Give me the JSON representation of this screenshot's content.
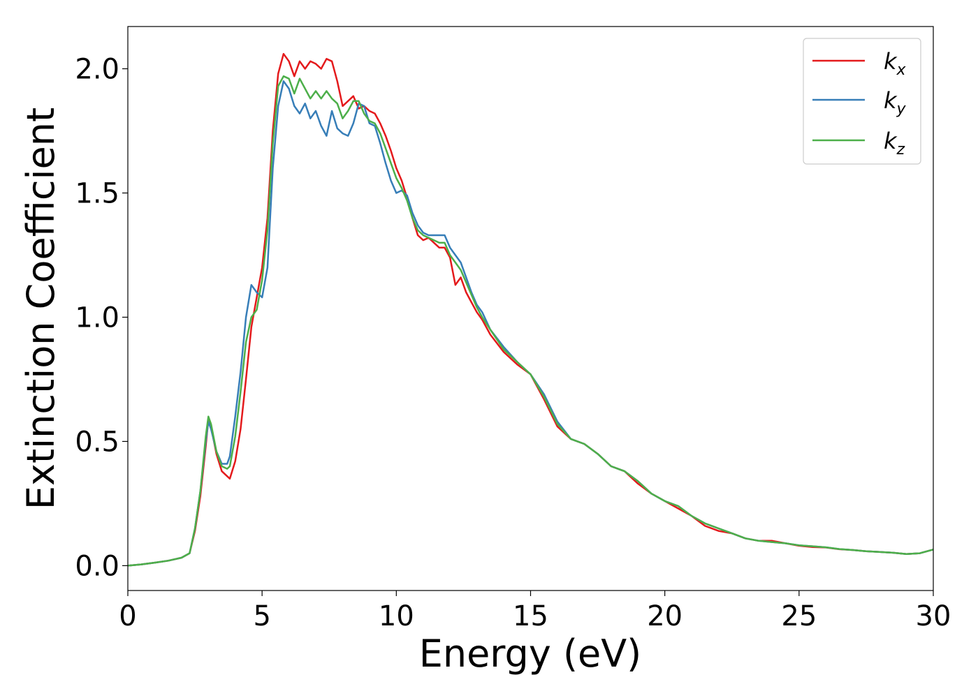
{
  "chart_data": {
    "type": "line",
    "xlabel": "Energy (eV)",
    "ylabel": "Extinction Coefficient",
    "xlim": [
      0,
      30
    ],
    "ylim": [
      -0.1,
      2.17
    ],
    "xticks": [
      0,
      5,
      10,
      15,
      20,
      25,
      30
    ],
    "xtick_labels": [
      "0",
      "5",
      "10",
      "15",
      "20",
      "25",
      "30"
    ],
    "yticks": [
      0.0,
      0.5,
      1.0,
      1.5,
      2.0
    ],
    "ytick_labels": [
      "0.0",
      "0.5",
      "1.0",
      "1.5",
      "2.0"
    ],
    "grid": false,
    "legend_position": "top-right",
    "series": [
      {
        "name": "k_x",
        "label_main": "k",
        "label_sub": "x",
        "color": "#e41a1c",
        "x": [
          0,
          0.5,
          1,
          1.5,
          2,
          2.3,
          2.5,
          2.7,
          2.9,
          3.0,
          3.1,
          3.3,
          3.5,
          3.7,
          3.8,
          4.0,
          4.2,
          4.4,
          4.6,
          4.8,
          5.0,
          5.2,
          5.4,
          5.6,
          5.8,
          6.0,
          6.2,
          6.4,
          6.6,
          6.8,
          7.0,
          7.2,
          7.4,
          7.6,
          7.8,
          8.0,
          8.2,
          8.4,
          8.6,
          8.8,
          9.0,
          9.2,
          9.4,
          9.6,
          9.8,
          10.0,
          10.2,
          10.4,
          10.6,
          10.8,
          11.0,
          11.2,
          11.4,
          11.6,
          11.8,
          12.0,
          12.2,
          12.4,
          12.6,
          12.8,
          13.0,
          13.2,
          13.5,
          14.0,
          14.5,
          15.0,
          15.5,
          16.0,
          16.5,
          17.0,
          17.5,
          18.0,
          18.5,
          19.0,
          19.5,
          20.0,
          20.5,
          21.0,
          21.5,
          22.0,
          22.5,
          23.0,
          23.5,
          24.0,
          24.5,
          25.0,
          25.5,
          26.0,
          26.5,
          27.0,
          27.5,
          28.0,
          28.5,
          29.0,
          29.5,
          30.0
        ],
        "y": [
          0.0,
          0.005,
          0.012,
          0.02,
          0.032,
          0.05,
          0.14,
          0.28,
          0.48,
          0.59,
          0.56,
          0.45,
          0.38,
          0.36,
          0.35,
          0.42,
          0.55,
          0.75,
          0.96,
          1.08,
          1.2,
          1.4,
          1.75,
          1.98,
          2.06,
          2.03,
          1.97,
          2.03,
          2.0,
          2.03,
          2.02,
          2.0,
          2.04,
          2.03,
          1.95,
          1.85,
          1.87,
          1.89,
          1.84,
          1.85,
          1.83,
          1.82,
          1.78,
          1.73,
          1.67,
          1.6,
          1.55,
          1.48,
          1.4,
          1.33,
          1.31,
          1.32,
          1.3,
          1.28,
          1.28,
          1.24,
          1.13,
          1.16,
          1.1,
          1.06,
          1.02,
          0.99,
          0.93,
          0.86,
          0.81,
          0.77,
          0.67,
          0.56,
          0.51,
          0.49,
          0.45,
          0.4,
          0.38,
          0.33,
          0.29,
          0.26,
          0.23,
          0.2,
          0.16,
          0.14,
          0.13,
          0.11,
          0.1,
          0.1,
          0.09,
          0.08,
          0.075,
          0.073,
          0.066,
          0.063,
          0.058,
          0.055,
          0.052,
          0.047,
          0.05,
          0.065
        ]
      },
      {
        "name": "k_y",
        "label_main": "k",
        "label_sub": "y",
        "color": "#377eb8",
        "x": [
          0,
          0.5,
          1,
          1.5,
          2,
          2.3,
          2.5,
          2.7,
          2.9,
          3.0,
          3.1,
          3.3,
          3.5,
          3.7,
          3.8,
          4.0,
          4.2,
          4.4,
          4.6,
          4.8,
          5.0,
          5.2,
          5.4,
          5.6,
          5.8,
          6.0,
          6.2,
          6.4,
          6.6,
          6.8,
          7.0,
          7.2,
          7.4,
          7.6,
          7.8,
          8.0,
          8.2,
          8.4,
          8.6,
          8.8,
          9.0,
          9.2,
          9.4,
          9.6,
          9.8,
          10.0,
          10.2,
          10.4,
          10.6,
          10.8,
          11.0,
          11.2,
          11.4,
          11.6,
          11.8,
          12.0,
          12.2,
          12.4,
          12.6,
          12.8,
          13.0,
          13.2,
          13.5,
          14.0,
          14.5,
          15.0,
          15.5,
          16.0,
          16.5,
          17.0,
          17.5,
          18.0,
          18.5,
          19.0,
          19.5,
          20.0,
          20.5,
          21.0,
          21.5,
          22.0,
          22.5,
          23.0,
          23.5,
          24.0,
          24.5,
          25.0,
          25.5,
          26.0,
          26.5,
          27.0,
          27.5,
          28.0,
          28.5,
          29.0,
          29.5,
          30.0
        ],
        "y": [
          0.0,
          0.005,
          0.012,
          0.02,
          0.032,
          0.05,
          0.15,
          0.3,
          0.5,
          0.58,
          0.55,
          0.46,
          0.41,
          0.41,
          0.44,
          0.6,
          0.78,
          1.0,
          1.13,
          1.1,
          1.08,
          1.2,
          1.6,
          1.85,
          1.95,
          1.92,
          1.85,
          1.82,
          1.86,
          1.8,
          1.83,
          1.77,
          1.73,
          1.83,
          1.76,
          1.74,
          1.73,
          1.78,
          1.86,
          1.85,
          1.78,
          1.77,
          1.7,
          1.62,
          1.55,
          1.5,
          1.51,
          1.49,
          1.42,
          1.37,
          1.34,
          1.33,
          1.33,
          1.33,
          1.33,
          1.28,
          1.25,
          1.22,
          1.16,
          1.1,
          1.05,
          1.02,
          0.95,
          0.88,
          0.82,
          0.77,
          0.69,
          0.58,
          0.51,
          0.49,
          0.45,
          0.4,
          0.38,
          0.34,
          0.29,
          0.26,
          0.24,
          0.2,
          0.17,
          0.15,
          0.13,
          0.11,
          0.1,
          0.095,
          0.09,
          0.082,
          0.078,
          0.074,
          0.067,
          0.063,
          0.058,
          0.055,
          0.052,
          0.047,
          0.05,
          0.065
        ]
      },
      {
        "name": "k_z",
        "label_main": "k",
        "label_sub": "z",
        "color": "#4daf4a",
        "x": [
          0,
          0.5,
          1,
          1.5,
          2,
          2.3,
          2.5,
          2.7,
          2.9,
          3.0,
          3.1,
          3.3,
          3.5,
          3.7,
          3.8,
          4.0,
          4.2,
          4.4,
          4.6,
          4.8,
          5.0,
          5.2,
          5.4,
          5.6,
          5.8,
          6.0,
          6.2,
          6.4,
          6.6,
          6.8,
          7.0,
          7.2,
          7.4,
          7.6,
          7.8,
          8.0,
          8.2,
          8.4,
          8.6,
          8.8,
          9.0,
          9.2,
          9.4,
          9.6,
          9.8,
          10.0,
          10.2,
          10.4,
          10.6,
          10.8,
          11.0,
          11.2,
          11.4,
          11.6,
          11.8,
          12.0,
          12.2,
          12.4,
          12.6,
          12.8,
          13.0,
          13.2,
          13.5,
          14.0,
          14.5,
          15.0,
          15.5,
          16.0,
          16.5,
          17.0,
          17.5,
          18.0,
          18.5,
          19.0,
          19.5,
          20.0,
          20.5,
          21.0,
          21.5,
          22.0,
          22.5,
          23.0,
          23.5,
          24.0,
          24.5,
          25.0,
          25.5,
          26.0,
          26.5,
          27.0,
          27.5,
          28.0,
          28.5,
          29.0,
          29.5,
          30.0
        ],
        "y": [
          0.0,
          0.005,
          0.012,
          0.02,
          0.032,
          0.05,
          0.15,
          0.3,
          0.52,
          0.6,
          0.57,
          0.46,
          0.4,
          0.39,
          0.4,
          0.52,
          0.7,
          0.9,
          1.0,
          1.03,
          1.15,
          1.35,
          1.7,
          1.93,
          1.97,
          1.96,
          1.9,
          1.96,
          1.92,
          1.88,
          1.91,
          1.88,
          1.91,
          1.88,
          1.86,
          1.8,
          1.83,
          1.87,
          1.87,
          1.82,
          1.79,
          1.78,
          1.74,
          1.68,
          1.62,
          1.56,
          1.52,
          1.47,
          1.4,
          1.35,
          1.33,
          1.32,
          1.31,
          1.3,
          1.3,
          1.25,
          1.22,
          1.19,
          1.14,
          1.09,
          1.04,
          1.0,
          0.95,
          0.87,
          0.82,
          0.77,
          0.68,
          0.57,
          0.51,
          0.49,
          0.45,
          0.4,
          0.38,
          0.34,
          0.29,
          0.26,
          0.24,
          0.2,
          0.17,
          0.15,
          0.13,
          0.11,
          0.1,
          0.095,
          0.09,
          0.082,
          0.078,
          0.074,
          0.067,
          0.063,
          0.058,
          0.055,
          0.052,
          0.047,
          0.05,
          0.065
        ]
      }
    ]
  }
}
